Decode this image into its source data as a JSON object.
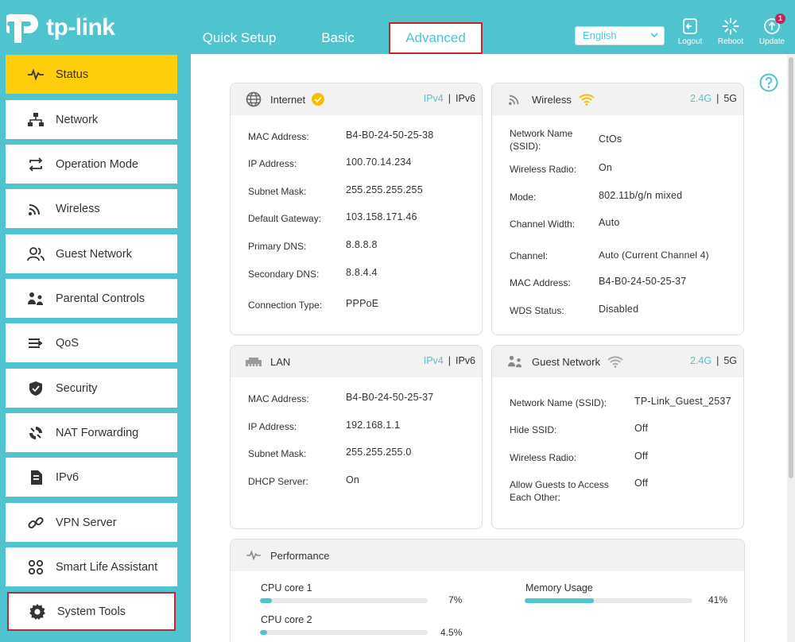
{
  "header": {
    "logo_text": "tp-link",
    "tabs": [
      {
        "label": "Quick Setup"
      },
      {
        "label": "Basic"
      },
      {
        "label": "Advanced"
      }
    ],
    "language": "English",
    "buttons": {
      "logout": "Logout",
      "reboot": "Reboot",
      "update": "Update",
      "update_badge": "1"
    }
  },
  "sidebar": {
    "items": [
      {
        "label": "Status",
        "icon": "pulse-icon"
      },
      {
        "label": "Network",
        "icon": "network-icon"
      },
      {
        "label": "Operation Mode",
        "icon": "operation-mode-icon"
      },
      {
        "label": "Wireless",
        "icon": "wireless-icon"
      },
      {
        "label": "Guest Network",
        "icon": "guest-icon"
      },
      {
        "label": "Parental Controls",
        "icon": "parental-icon"
      },
      {
        "label": "QoS",
        "icon": "qos-icon"
      },
      {
        "label": "Security",
        "icon": "shield-icon"
      },
      {
        "label": "NAT Forwarding",
        "icon": "nat-icon"
      },
      {
        "label": "IPv6",
        "icon": "ipv6-icon"
      },
      {
        "label": "VPN Server",
        "icon": "vpn-icon"
      },
      {
        "label": "Smart Life Assistant",
        "icon": "smart-life-icon"
      },
      {
        "label": "System Tools",
        "icon": "gear-icon"
      }
    ]
  },
  "internet": {
    "title": "Internet",
    "ipv4": "IPv4",
    "ipv6": "IPv6",
    "sep": "|",
    "rows": [
      {
        "label": "MAC Address:",
        "value": "B4-B0-24-50-25-38"
      },
      {
        "label": "IP Address:",
        "value": "100.70.14.234"
      },
      {
        "label": "Subnet Mask:",
        "value": "255.255.255.255"
      },
      {
        "label": "Default Gateway:",
        "value": "103.158.171.46"
      },
      {
        "label": "Primary DNS:",
        "value": "8.8.8.8"
      },
      {
        "label": "Secondary DNS:",
        "value": "8.8.4.4"
      },
      {
        "label": "Connection Type:",
        "value": "PPPoE"
      }
    ]
  },
  "wireless": {
    "title": "Wireless",
    "band1": "2.4G",
    "band2": "5G",
    "sep": "|",
    "rows": [
      {
        "label": "Network Name (SSID):",
        "value": "CtOs"
      },
      {
        "label": "Wireless Radio:",
        "value": "On"
      },
      {
        "label": "Mode:",
        "value": "802.11b/g/n mixed"
      },
      {
        "label": "Channel Width:",
        "value": "Auto"
      },
      {
        "label": "Channel:",
        "value": "Auto (Current Channel 4)"
      },
      {
        "label": "MAC Address:",
        "value": "B4-B0-24-50-25-37"
      },
      {
        "label": "WDS Status:",
        "value": "Disabled"
      }
    ]
  },
  "lan": {
    "title": "LAN",
    "ipv4": "IPv4",
    "ipv6": "IPv6",
    "sep": "|",
    "rows": [
      {
        "label": "MAC Address:",
        "value": "B4-B0-24-50-25-37"
      },
      {
        "label": "IP Address:",
        "value": "192.168.1.1"
      },
      {
        "label": "Subnet Mask:",
        "value": "255.255.255.0"
      },
      {
        "label": "DHCP Server:",
        "value": "On"
      }
    ]
  },
  "guest": {
    "title": "Guest Network",
    "band1": "2.4G",
    "band2": "5G",
    "sep": "|",
    "rows": [
      {
        "label": "Network Name (SSID):",
        "value": "TP-Link_Guest_2537"
      },
      {
        "label": "Hide SSID:",
        "value": "Off"
      },
      {
        "label": "Wireless Radio:",
        "value": "Off"
      },
      {
        "label": "Allow Guests to Access Each Other:",
        "value": "Off"
      }
    ]
  },
  "performance": {
    "title": "Performance",
    "cpu1": {
      "label": "CPU core 1",
      "pct_text": "7%",
      "pct": 7
    },
    "cpu2": {
      "label": "CPU core 2",
      "pct_text": "4.5%",
      "pct": 4.5
    },
    "memory": {
      "label": "Memory Usage",
      "pct_text": "41%",
      "pct": 41
    }
  },
  "colors": {
    "brand": "#4fc4cf",
    "active_nav": "#fece0a",
    "highlight_border": "#c0282d",
    "status_ok": "#f5c000"
  }
}
